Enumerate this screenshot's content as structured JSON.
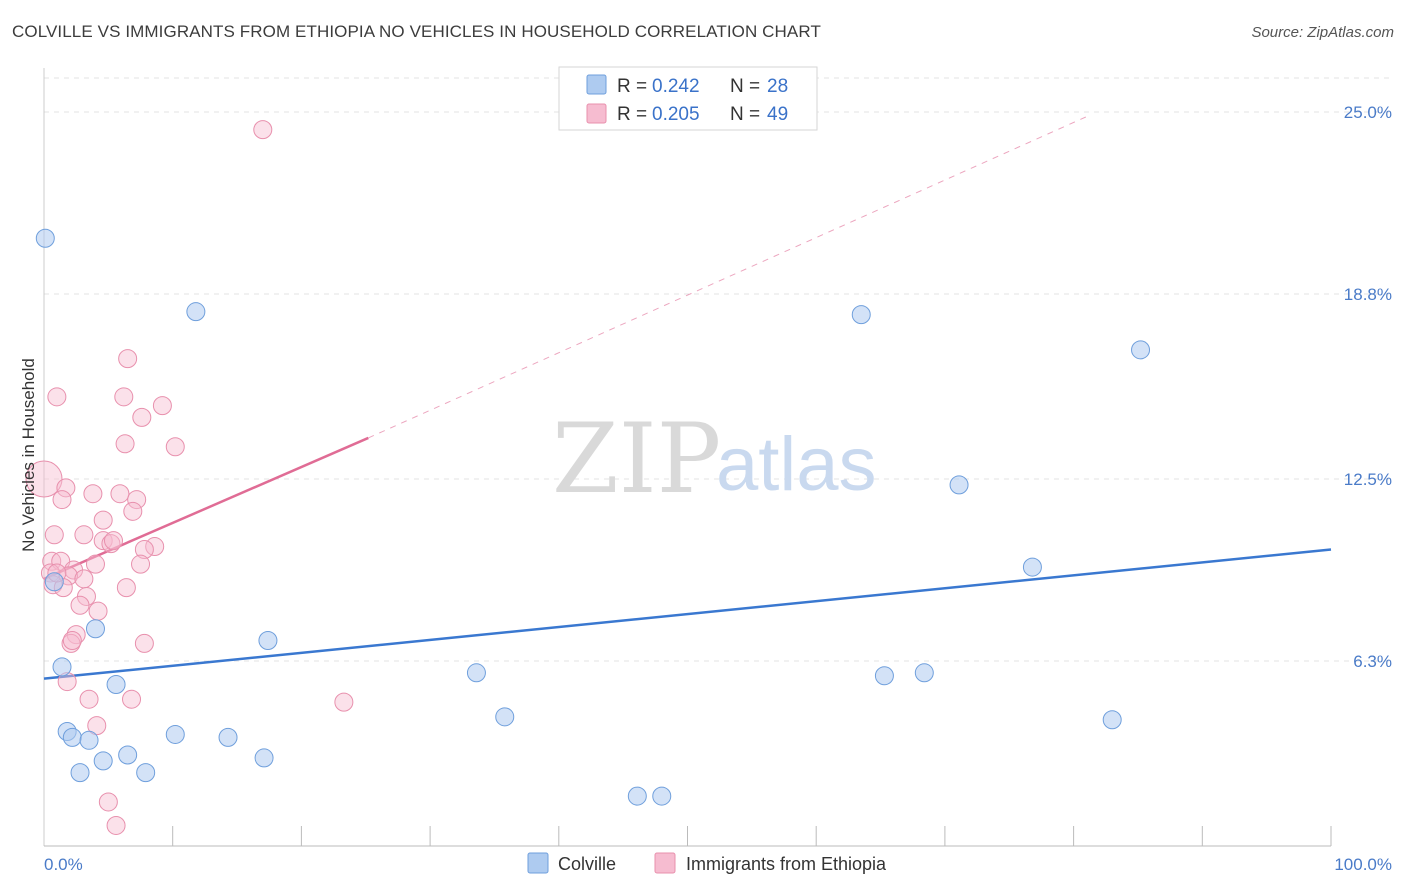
{
  "title": "COLVILLE VS IMMIGRANTS FROM ETHIOPIA NO VEHICLES IN HOUSEHOLD CORRELATION CHART",
  "source": "Source: ZipAtlas.com",
  "watermark": {
    "zip": "ZIP",
    "atlas": "atlas"
  },
  "legend": {
    "rows": [
      {
        "r_label": "R =",
        "r_value": "0.242",
        "n_label": "N =",
        "n_value": "28"
      },
      {
        "r_label": "R =",
        "r_value": "0.205",
        "n_label": "N =",
        "n_value": "49"
      }
    ]
  },
  "colors": {
    "colville_fill": "#aecbf0",
    "colville_stroke": "#6f9fdc",
    "colville_line": "#3a78d0",
    "ethiopia_fill": "#f6bcd0",
    "ethiopia_stroke": "#e890ad",
    "ethiopia_line": "#e06c95",
    "tick_text": "#4a7bc8",
    "grid": "#e3e3e3"
  },
  "chart_data": {
    "type": "scatter",
    "ylabel": "No Vehicles in Household",
    "xlim": [
      0,
      100
    ],
    "ylim": [
      0,
      26.5
    ],
    "y_ticks": [
      {
        "value": 6.3,
        "label": "6.3%"
      },
      {
        "value": 12.5,
        "label": "12.5%"
      },
      {
        "value": 18.8,
        "label": "18.8%"
      },
      {
        "value": 25.0,
        "label": "25.0%"
      }
    ],
    "x_tick_labels": {
      "min": "0.0%",
      "max": "100.0%"
    },
    "series": [
      {
        "name": "Colville",
        "points": [
          [
            0.1,
            20.7
          ],
          [
            11.8,
            18.2
          ],
          [
            63.5,
            18.1
          ],
          [
            85.2,
            16.9
          ],
          [
            71.1,
            12.3
          ],
          [
            76.8,
            9.5
          ],
          [
            0.8,
            9.0
          ],
          [
            4.0,
            7.4
          ],
          [
            17.4,
            7.0
          ],
          [
            1.4,
            6.1
          ],
          [
            33.6,
            5.9
          ],
          [
            65.3,
            5.8
          ],
          [
            68.4,
            5.9
          ],
          [
            5.6,
            5.5
          ],
          [
            35.8,
            4.4
          ],
          [
            83.0,
            4.3
          ],
          [
            1.8,
            3.9
          ],
          [
            2.2,
            3.7
          ],
          [
            3.5,
            3.6
          ],
          [
            10.2,
            3.8
          ],
          [
            14.3,
            3.7
          ],
          [
            6.5,
            3.1
          ],
          [
            4.6,
            2.9
          ],
          [
            17.1,
            3.0
          ],
          [
            2.8,
            2.5
          ],
          [
            7.9,
            2.5
          ],
          [
            46.1,
            1.7
          ],
          [
            48.0,
            1.7
          ]
        ],
        "trend": {
          "x": [
            0,
            100
          ],
          "y": [
            5.7,
            10.1
          ]
        }
      },
      {
        "name": "Immigrants from Ethiopia",
        "points": [
          [
            17.0,
            24.4
          ],
          [
            6.5,
            16.6
          ],
          [
            1.0,
            15.3
          ],
          [
            6.2,
            15.3
          ],
          [
            9.2,
            15.0
          ],
          [
            7.6,
            14.6
          ],
          [
            6.3,
            13.7
          ],
          [
            10.2,
            13.6
          ],
          [
            0.0,
            12.5
          ],
          [
            1.7,
            12.2
          ],
          [
            3.8,
            12.0
          ],
          [
            5.9,
            12.0
          ],
          [
            1.4,
            11.8
          ],
          [
            7.2,
            11.8
          ],
          [
            6.9,
            11.4
          ],
          [
            4.6,
            11.1
          ],
          [
            0.8,
            10.6
          ],
          [
            3.1,
            10.6
          ],
          [
            4.6,
            10.4
          ],
          [
            5.2,
            10.3
          ],
          [
            5.4,
            10.4
          ],
          [
            8.6,
            10.2
          ],
          [
            7.8,
            10.1
          ],
          [
            0.6,
            9.7
          ],
          [
            1.3,
            9.7
          ],
          [
            4.0,
            9.6
          ],
          [
            7.5,
            9.6
          ],
          [
            2.3,
            9.4
          ],
          [
            0.5,
            9.3
          ],
          [
            1.9,
            9.2
          ],
          [
            3.1,
            9.1
          ],
          [
            0.7,
            8.9
          ],
          [
            1.5,
            8.8
          ],
          [
            6.4,
            8.8
          ],
          [
            3.3,
            8.5
          ],
          [
            2.8,
            8.2
          ],
          [
            4.2,
            8.0
          ],
          [
            2.5,
            7.2
          ],
          [
            7.8,
            6.9
          ],
          [
            2.1,
            6.9
          ],
          [
            1.8,
            5.6
          ],
          [
            3.5,
            5.0
          ],
          [
            6.8,
            5.0
          ],
          [
            23.3,
            4.9
          ],
          [
            4.1,
            4.1
          ],
          [
            5.0,
            1.5
          ],
          [
            5.6,
            0.7
          ],
          [
            2.2,
            7.0
          ],
          [
            1.0,
            9.3
          ]
        ],
        "trend": {
          "x": [
            0,
            25.2
          ],
          "y": [
            9.1,
            13.9
          ]
        },
        "trend_extension": {
          "x": [
            25.2,
            81.3
          ],
          "y": [
            13.9,
            24.9
          ]
        }
      }
    ]
  }
}
